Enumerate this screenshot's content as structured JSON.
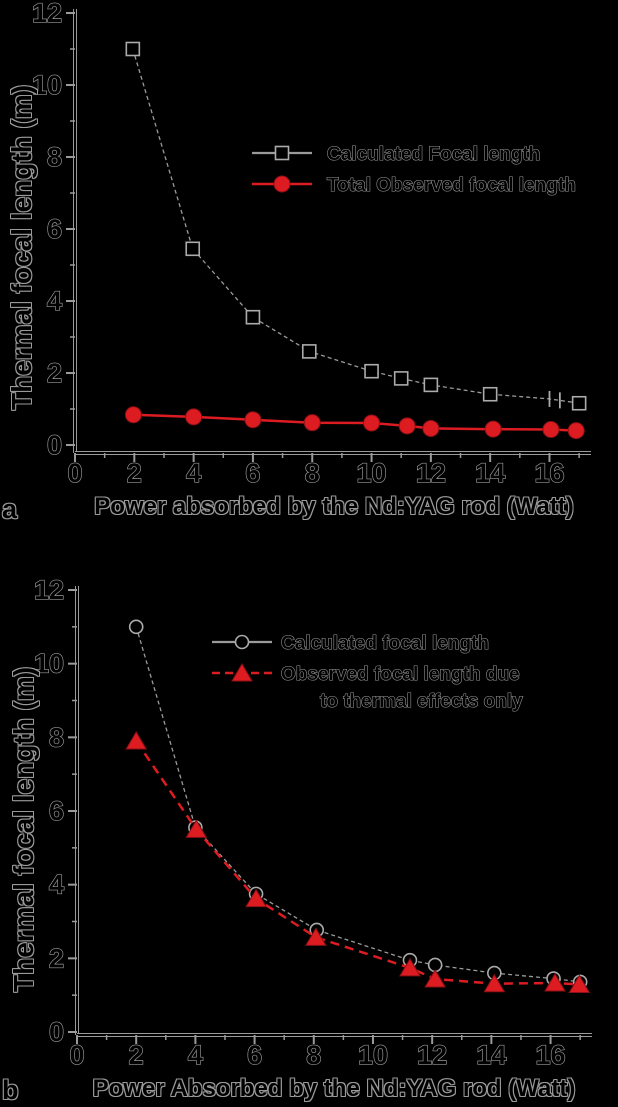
{
  "figure": {
    "background": "#000000",
    "outline_grey": "#9a9a9a",
    "marker_grey": "#ababab",
    "red": "#dd1c22",
    "red_dark": "#8c1015"
  },
  "chart_data": [
    {
      "type": "line",
      "panel": "a",
      "xlabel": "Power absorbed by the Nd:YAG rod (Watt)",
      "ylabel": "Thermal focal length (m)",
      "xlim": [
        0,
        17.4
      ],
      "ylim": [
        0,
        12
      ],
      "x_ticks": [
        0,
        2,
        4,
        6,
        8,
        10,
        12,
        14,
        16
      ],
      "y_ticks": [
        0,
        2,
        4,
        6,
        8,
        10,
        12
      ],
      "grid": false,
      "legend_position": "inside-upper-right",
      "series": [
        {
          "name": "Calculated Focal length",
          "label_lines": [
            "Calculated  Focal length"
          ],
          "marker": "open-square",
          "color": "black",
          "line_style": "solid",
          "x": [
            1.95,
            3.97,
            6.0,
            7.9,
            10.0,
            11.0,
            12.0,
            14.0,
            16.0,
            17.0
          ],
          "y": [
            11.0,
            5.45,
            3.55,
            2.6,
            2.05,
            1.85,
            1.67,
            1.41,
            1.28,
            1.16
          ],
          "cap_indices": [
            8
          ],
          "extra_caps": [
            {
              "x": 16.35,
              "y": 1.24
            }
          ]
        },
        {
          "name": "Total Observed focal length",
          "label_lines": [
            "Total Observed focal length"
          ],
          "marker": "filled-circle",
          "color": "red",
          "line_style": "solid",
          "x": [
            1.97,
            4.0,
            6.0,
            8.0,
            10.0,
            11.2,
            12.0,
            14.1,
            16.05,
            16.9
          ],
          "y": [
            0.84,
            0.78,
            0.7,
            0.62,
            0.61,
            0.53,
            0.46,
            0.44,
            0.43,
            0.4
          ],
          "cap_indices": [],
          "extra_caps": []
        }
      ]
    },
    {
      "type": "line",
      "panel": "b",
      "xlabel": "Power Absorbed by the Nd:YAG rod (Watt)",
      "ylabel": "Thermal focal length (m)",
      "xlim": [
        0,
        17.4
      ],
      "ylim": [
        0,
        12
      ],
      "x_ticks": [
        0,
        2,
        4,
        6,
        8,
        10,
        12,
        14,
        16
      ],
      "y_ticks": [
        0,
        2,
        4,
        6,
        8,
        10,
        12
      ],
      "grid": false,
      "legend_position": "inside-upper-right",
      "series": [
        {
          "name": "Calculated focal length",
          "label_lines": [
            "Calculated focal length"
          ],
          "marker": "open-circle",
          "color": "black",
          "line_style": "solid",
          "x": [
            2.0,
            4.0,
            6.05,
            8.1,
            11.25,
            12.1,
            14.1,
            16.1,
            17.0
          ],
          "y": [
            11.0,
            5.55,
            3.75,
            2.77,
            1.95,
            1.82,
            1.6,
            1.45,
            1.36
          ],
          "cap_indices": [],
          "extra_caps": []
        },
        {
          "name": "Observed focal length due to thermal effects only",
          "label_lines": [
            "Observed focal length due",
            "to thermal effects only"
          ],
          "marker": "filled-triangle",
          "color": "red",
          "line_style": "dashed",
          "x": [
            2.0,
            4.03,
            6.05,
            8.07,
            11.25,
            12.1,
            14.1,
            16.15,
            16.97
          ],
          "y": [
            7.9,
            5.5,
            3.62,
            2.57,
            1.74,
            1.44,
            1.31,
            1.33,
            1.29
          ],
          "cap_indices": [],
          "extra_caps": []
        }
      ]
    }
  ]
}
